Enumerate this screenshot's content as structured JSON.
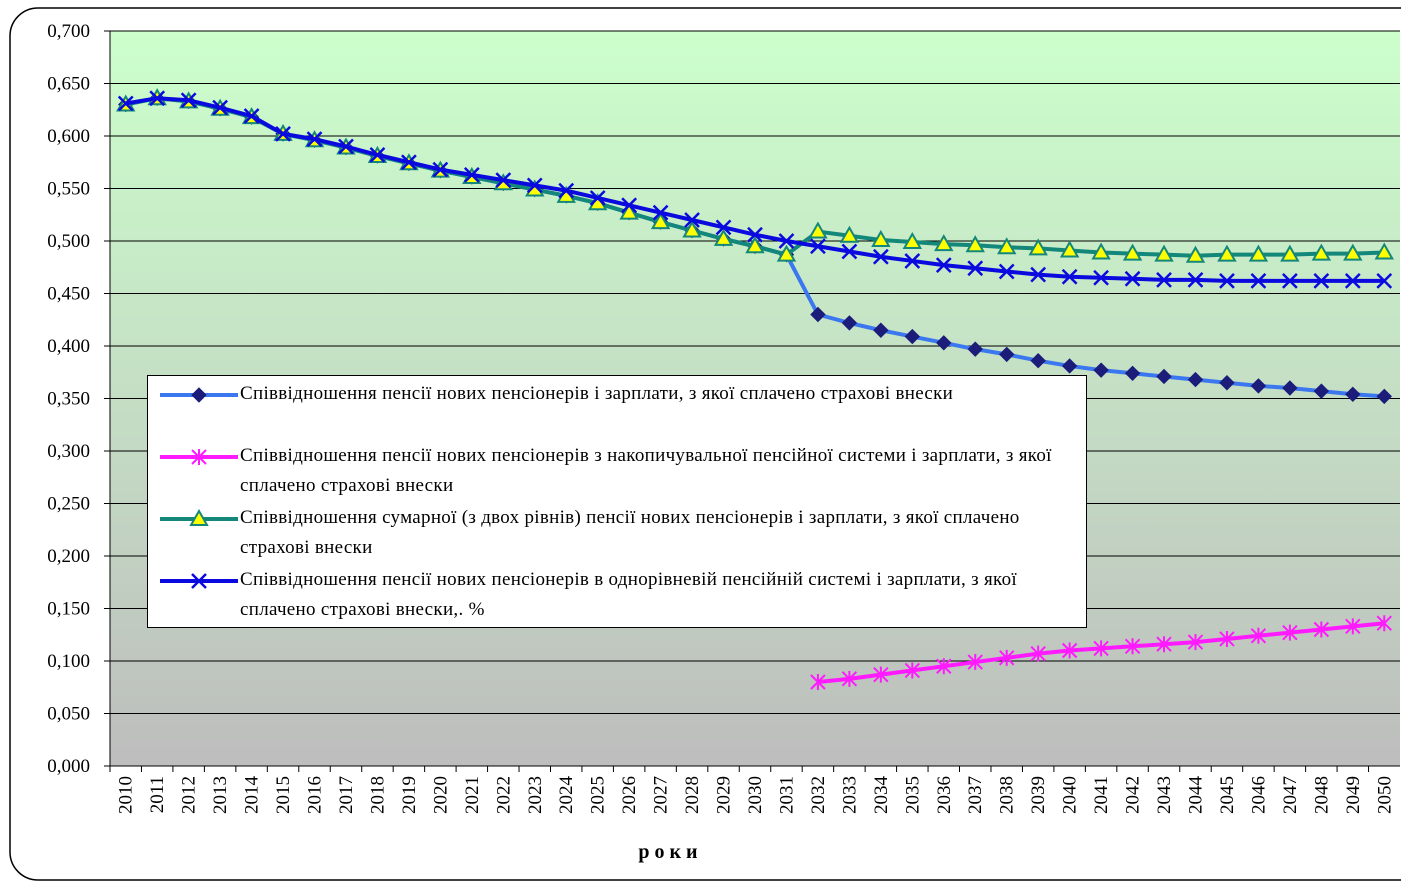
{
  "chart_data": {
    "type": "line",
    "xlabel": "р о к и",
    "categories": [
      "2010",
      "2011",
      "2012",
      "2013",
      "2014",
      "2015",
      "2016",
      "2017",
      "2018",
      "2019",
      "2020",
      "2021",
      "2022",
      "2023",
      "2024",
      "2025",
      "2026",
      "2027",
      "2028",
      "2029",
      "2030",
      "2031",
      "2032",
      "2033",
      "2034",
      "2035",
      "2036",
      "2037",
      "2038",
      "2039",
      "2040",
      "2041",
      "2042",
      "2043",
      "2044",
      "2045",
      "2046",
      "2047",
      "2048",
      "2049",
      "2050"
    ],
    "series": [
      {
        "name": "Співвідношення пенсії нових пенсіонерів і зарплати, з якої сплачено страхові внески",
        "color": "#3b78f0",
        "marker": "diamond",
        "values": [
          0.63,
          0.636,
          0.633,
          0.626,
          0.618,
          0.602,
          0.596,
          0.589,
          0.581,
          0.574,
          0.567,
          0.561,
          0.555,
          0.549,
          0.543,
          0.536,
          0.527,
          0.518,
          0.51,
          0.502,
          0.495,
          0.487,
          0.43,
          0.422,
          0.415,
          0.409,
          0.403,
          0.397,
          0.392,
          0.386,
          0.381,
          0.377,
          0.374,
          0.371,
          0.368,
          0.365,
          0.362,
          0.36,
          0.357,
          0.354,
          0.352
        ]
      },
      {
        "name": "Співвідношення пенсії нових пенсіонерів  з накопичувальної пенсійної системи і зарплати, з якої сплачено страхові внески",
        "color": "#ff1aff",
        "marker": "star",
        "values": [
          null,
          null,
          null,
          null,
          null,
          null,
          null,
          null,
          null,
          null,
          null,
          null,
          null,
          null,
          null,
          null,
          null,
          null,
          null,
          null,
          null,
          null,
          0.08,
          0.083,
          0.087,
          0.091,
          0.095,
          0.099,
          0.103,
          0.107,
          0.11,
          0.112,
          0.114,
          0.116,
          0.118,
          0.121,
          0.124,
          0.127,
          0.13,
          0.133,
          0.136
        ]
      },
      {
        "name": "Співвідношення сумарної (з двох рівнів) пенсії нових пенсіонерів і зарплати, з якої сплачено страхові внески",
        "color": "#13877a",
        "marker": "triangle",
        "values": [
          0.63,
          0.636,
          0.633,
          0.626,
          0.618,
          0.602,
          0.596,
          0.589,
          0.581,
          0.574,
          0.567,
          0.561,
          0.555,
          0.549,
          0.543,
          0.536,
          0.527,
          0.518,
          0.51,
          0.502,
          0.495,
          0.487,
          0.509,
          0.505,
          0.501,
          0.499,
          0.497,
          0.496,
          0.494,
          0.493,
          0.491,
          0.489,
          0.488,
          0.487,
          0.486,
          0.487,
          0.487,
          0.487,
          0.488,
          0.488,
          0.489
        ]
      },
      {
        "name": "Співвідношення пенсії нових пенсіонерів в однорівневій пенсійній системі і зарплати, з якої сплачено страхові внески,. %",
        "color": "#0a0adf",
        "marker": "x",
        "values": [
          0.631,
          0.636,
          0.634,
          0.627,
          0.619,
          0.602,
          0.597,
          0.59,
          0.582,
          0.575,
          0.568,
          0.563,
          0.558,
          0.553,
          0.548,
          0.541,
          0.534,
          0.527,
          0.52,
          0.513,
          0.506,
          0.5,
          0.495,
          0.49,
          0.485,
          0.481,
          0.477,
          0.474,
          0.471,
          0.468,
          0.466,
          0.465,
          0.464,
          0.463,
          0.463,
          0.462,
          0.462,
          0.462,
          0.462,
          0.462,
          0.462
        ]
      }
    ],
    "ylim": [
      0,
      0.7
    ],
    "yticks": [
      {
        "value": 0,
        "label": "0,000"
      },
      {
        "value": 0.05,
        "label": "0,050"
      },
      {
        "value": 0.1,
        "label": "0,100"
      },
      {
        "value": 0.15,
        "label": "0,150"
      },
      {
        "value": 0.2,
        "label": "0,200"
      },
      {
        "value": 0.25,
        "label": "0,250"
      },
      {
        "value": 0.3,
        "label": "0,300"
      },
      {
        "value": 0.35,
        "label": "0,350"
      },
      {
        "value": 0.4,
        "label": "0,400"
      },
      {
        "value": 0.45,
        "label": "0,450"
      },
      {
        "value": 0.5,
        "label": "0,500"
      },
      {
        "value": 0.55,
        "label": "0,550"
      },
      {
        "value": 0.6,
        "label": "0,600"
      },
      {
        "value": 0.65,
        "label": "0,650"
      },
      {
        "value": 0.7,
        "label": "0,700"
      }
    ],
    "grid": true,
    "legend": "lower left"
  }
}
